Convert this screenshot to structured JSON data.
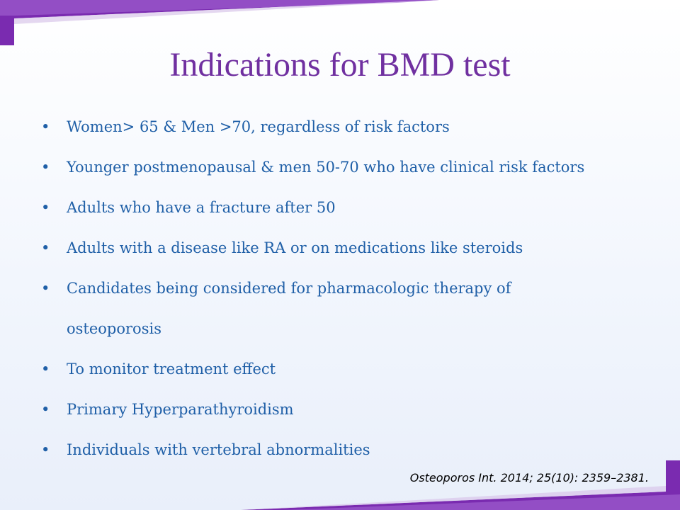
{
  "slide": {
    "title": "Indications for BMD test",
    "bullets": [
      "Women> 65 & Men >70, regardless of risk factors",
      "Younger postmenopausal & men 50-70 who have clinical risk factors",
      "Adults who have a fracture after 50",
      "Adults with a disease like RA or on medications like steroids",
      "Candidates being considered for pharmacologic therapy of osteoporosis",
      "To monitor treatment effect",
      "Primary Hyperparathyroidism",
      "Individuals with vertebral abnormalities"
    ],
    "bullet_glyph": "•",
    "citation": "Osteoporos Int. 2014; 25(10): 2359–2381."
  },
  "colors": {
    "title": "#7030a0",
    "bullet_text": "#1f5fa7",
    "accent_purple": "#6a1fa0"
  }
}
